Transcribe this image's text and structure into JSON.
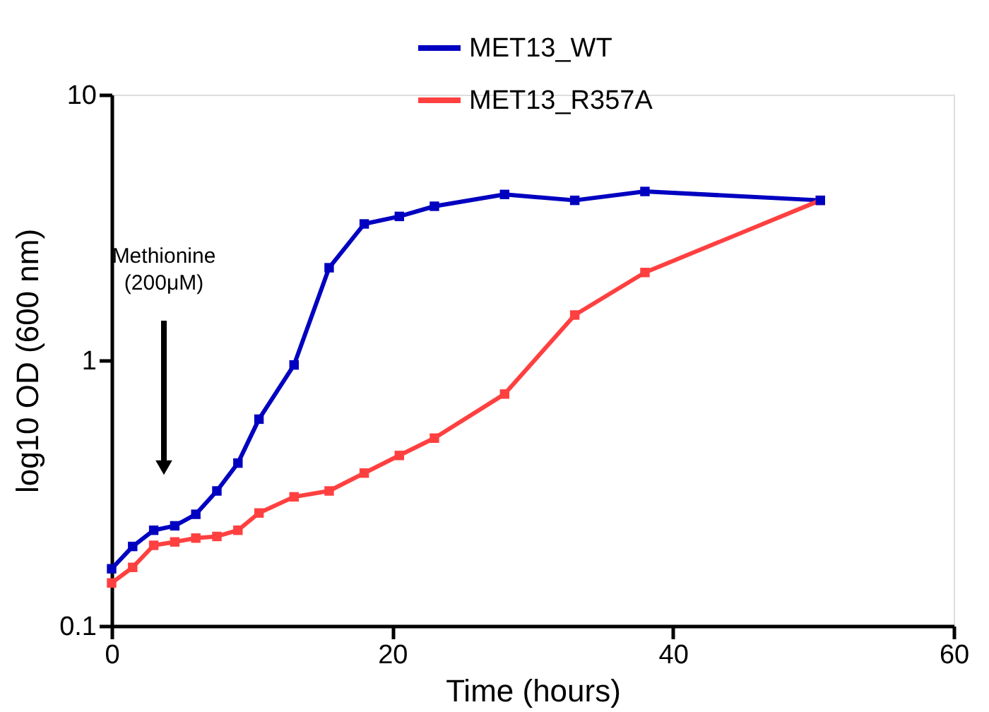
{
  "chart_data": {
    "type": "line",
    "xlabel": "Time (hours)",
    "ylabel": "log10 OD (600 nm)",
    "log": "y",
    "xlim": [
      0,
      60
    ],
    "xticks": [
      0,
      20,
      40,
      60
    ],
    "ylim": [
      0.1,
      10
    ],
    "yticks": [
      0.1,
      1,
      10
    ],
    "marker": "square",
    "line_style": "solid",
    "grid": false,
    "legend": "top right",
    "annotations": [
      "Methionine\n(200μM)"
    ],
    "series": [
      {
        "name": "MET13_WT",
        "color": "#0000c0",
        "x": [
          0,
          1.5,
          3,
          4.5,
          6,
          7.5,
          9,
          10.5,
          13,
          15.5,
          18,
          20.5,
          23,
          28,
          33,
          38,
          50.5
        ],
        "values": [
          0.164,
          0.199,
          0.229,
          0.238,
          0.263,
          0.322,
          0.41,
          0.6,
          0.96,
          2.23,
          3.26,
          3.48,
          3.8,
          4.21,
          4.0,
          4.32,
          4.0
        ]
      },
      {
        "name": "MET13_R357A",
        "color": "#ff4040",
        "x": [
          0,
          1.5,
          3,
          4.5,
          6,
          7.5,
          9,
          10.5,
          13,
          15.5,
          18,
          20.5,
          23,
          28,
          33,
          38,
          50.5
        ],
        "values": [
          0.145,
          0.166,
          0.201,
          0.207,
          0.214,
          0.217,
          0.229,
          0.266,
          0.306,
          0.322,
          0.376,
          0.438,
          0.509,
          0.746,
          1.48,
          2.14,
          4.0
        ]
      }
    ]
  }
}
